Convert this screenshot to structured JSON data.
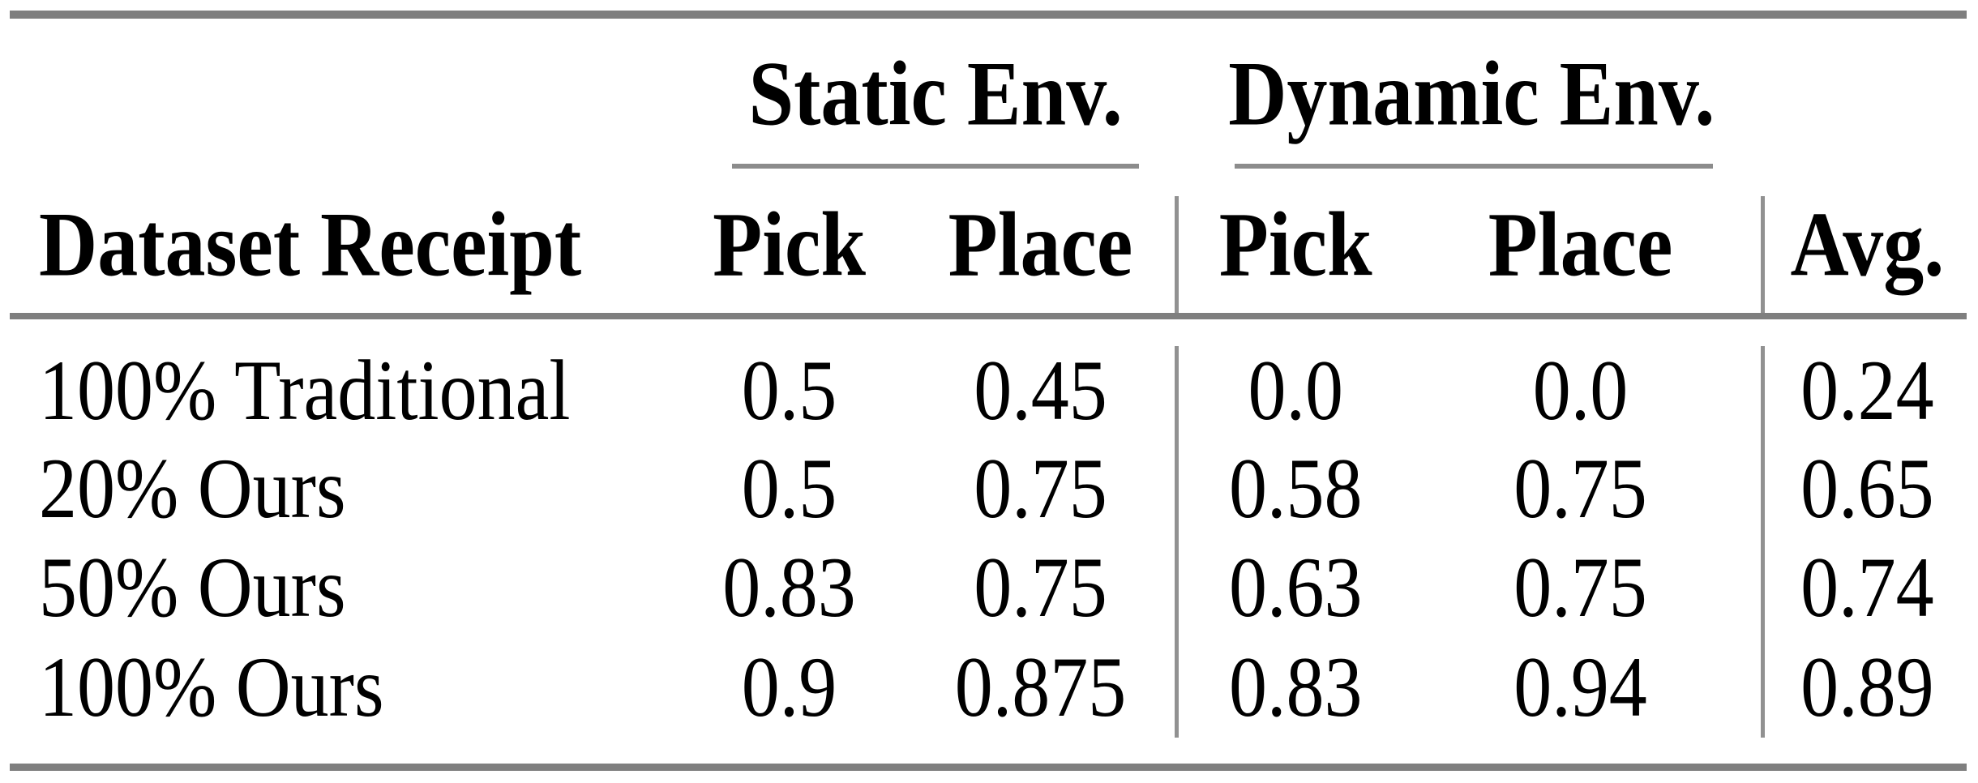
{
  "figure": {
    "type": "paper-results-table",
    "corner_label": "Dataset Receipt",
    "groups": [
      {
        "label": "Static Env."
      },
      {
        "label": "Dynamic Env."
      }
    ],
    "columns": [
      "Pick",
      "Place",
      "Pick",
      "Place",
      "Avg."
    ],
    "rows": [
      {
        "label": "100% Traditional",
        "values": [
          "0.5",
          "0.45",
          "0.0",
          "0.0",
          "0.24"
        ]
      },
      {
        "label": "20% Ours",
        "values": [
          "0.5",
          "0.75",
          "0.58",
          "0.75",
          "0.65"
        ]
      },
      {
        "label": "50% Ours",
        "values": [
          "0.83",
          "0.75",
          "0.63",
          "0.75",
          "0.74"
        ]
      },
      {
        "label": "100% Ours",
        "values": [
          "0.9",
          "0.875",
          "0.83",
          "0.94",
          "0.89"
        ]
      }
    ],
    "colors": {
      "rule_heavy": "#7f7f7f",
      "rule_light": "#8c8c8c",
      "column_separator": "#919191",
      "text": "#000000",
      "background": "#ffffff"
    }
  },
  "chart_data": {
    "type": "table",
    "title": "",
    "column_groups": [
      "",
      "Static Env.",
      "Static Env.",
      "Dynamic Env.",
      "Dynamic Env.",
      ""
    ],
    "columns": [
      "Dataset Receipt",
      "Pick",
      "Place",
      "Pick",
      "Place",
      "Avg."
    ],
    "rows": [
      [
        "100% Traditional",
        0.5,
        0.45,
        0.0,
        0.0,
        0.24
      ],
      [
        "20% Ours",
        0.5,
        0.75,
        0.58,
        0.75,
        0.65
      ],
      [
        "50% Ours",
        0.83,
        0.75,
        0.63,
        0.75,
        0.74
      ],
      [
        "100% Ours",
        0.9,
        0.875,
        0.83,
        0.94,
        0.89
      ]
    ]
  }
}
